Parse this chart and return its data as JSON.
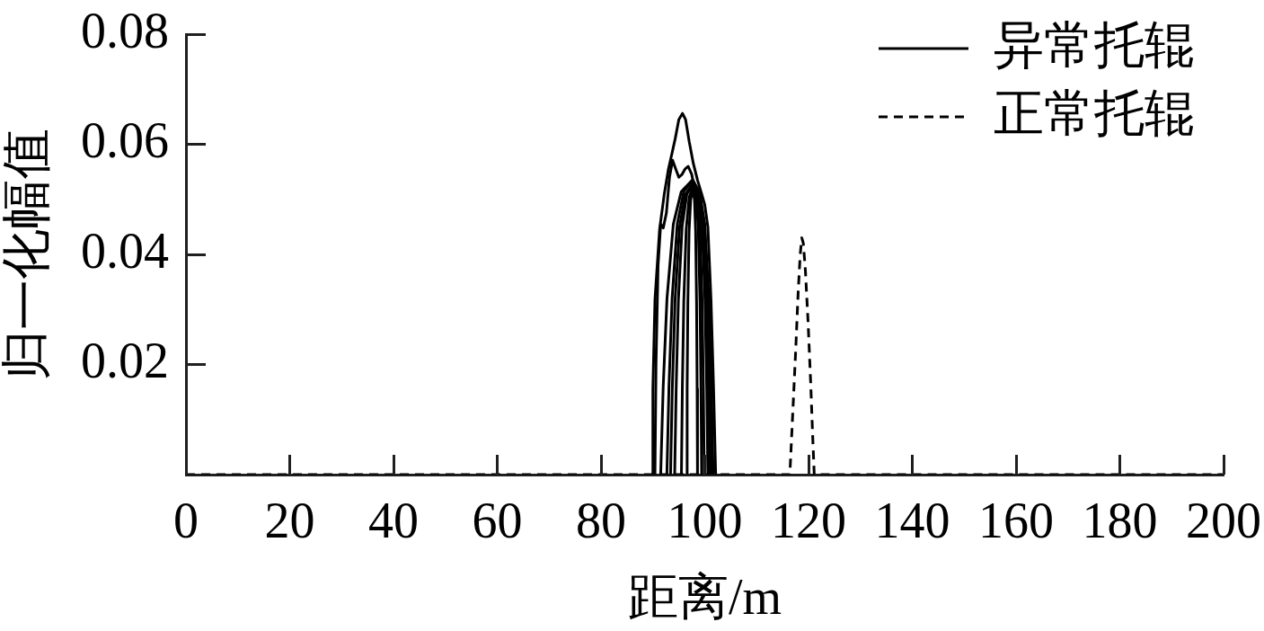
{
  "chart_data": {
    "type": "line",
    "xlabel": "距离/m",
    "ylabel": "归一化幅值",
    "xlim": [
      0,
      200
    ],
    "xticks": [
      0,
      20,
      40,
      60,
      80,
      100,
      120,
      140,
      160,
      180,
      200
    ],
    "ylim": [
      0,
      0.08
    ],
    "yticks": [
      0.02,
      0.04,
      0.06,
      0.08
    ],
    "grid": false,
    "legend": "top right",
    "marker": "none",
    "series": [
      {
        "name": "异常托辊",
        "color": "#000000",
        "line_style": "solid",
        "x": [
          89.9,
          90.0,
          90.4,
          91.3,
          92.2,
          93.0,
          93.6,
          94.3,
          95.0,
          95.7,
          96.3,
          97.0,
          97.8,
          98.6,
          99.4,
          100.0,
          100.6,
          101.2,
          101.7,
          102.1
        ],
        "values": [
          0,
          0.0155,
          0.0318,
          0.0446,
          0.051,
          0.0555,
          0.058,
          0.061,
          0.0645,
          0.0656,
          0.0645,
          0.0605,
          0.0565,
          0.0535,
          0.051,
          0.049,
          0.045,
          0.0318,
          0.0155,
          0
        ]
      },
      {
        "color": "#000000",
        "line_style": "solid",
        "x": [
          90.4,
          90.6,
          91.0,
          91.5,
          92.0,
          92.6,
          93.2,
          93.8,
          94.4,
          95.0,
          95.6,
          96.2,
          96.8,
          97.5,
          98.3,
          99.2,
          100.0,
          100.6,
          101.0,
          101.3
        ],
        "values": [
          0,
          0.02,
          0.038,
          0.0455,
          0.0448,
          0.0475,
          0.054,
          0.0571,
          0.0555,
          0.054,
          0.0545,
          0.0555,
          0.056,
          0.0545,
          0.0505,
          0.046,
          0.04,
          0.03,
          0.018,
          0
        ]
      },
      {
        "color": "#000000",
        "line_style": "solid",
        "x": [
          91.5,
          91.99,
          92.72,
          93.94,
          95.47,
          97.6,
          99.0,
          100.0,
          100.8,
          101.28,
          101.6
        ],
        "values": [
          0,
          0.016,
          0.032,
          0.0455,
          0.0514,
          0.0535,
          0.0514,
          0.0455,
          0.032,
          0.016,
          0
        ]
      },
      {
        "color": "#000000",
        "line_style": "solid",
        "x": [
          92.7,
          93.1,
          93.7,
          94.7,
          95.95,
          97.7,
          98.86,
          99.68,
          100.34,
          100.74,
          101.0
        ],
        "values": [
          0,
          0.016,
          0.032,
          0.0455,
          0.0514,
          0.0535,
          0.0514,
          0.0455,
          0.032,
          0.016,
          0
        ]
      },
      {
        "color": "#000000",
        "line_style": "solid",
        "x": [
          93.4,
          93.75,
          94.28,
          95.16,
          96.26,
          97.8,
          98.78,
          99.48,
          100.04,
          100.38,
          100.6
        ],
        "values": [
          0,
          0.0159,
          0.0318,
          0.0451,
          0.0509,
          0.053,
          0.0509,
          0.0451,
          0.0318,
          0.0159,
          0
        ]
      },
      {
        "color": "#000000",
        "line_style": "solid",
        "x": [
          94.2,
          94.49,
          94.92,
          95.64,
          96.54,
          97.8,
          98.54,
          99.06,
          99.48,
          99.73,
          99.9
        ],
        "values": [
          0,
          0.0159,
          0.0318,
          0.0451,
          0.0509,
          0.053,
          0.0509,
          0.0451,
          0.0318,
          0.0159,
          0
        ]
      },
      {
        "color": "#000000",
        "line_style": "solid",
        "x": [
          95.5,
          95.68,
          95.96,
          96.42,
          97.0,
          97.8,
          98.36,
          98.76,
          99.08,
          99.27,
          99.4
        ],
        "values": [
          0,
          0.0158,
          0.0315,
          0.0446,
          0.0504,
          0.0525,
          0.0504,
          0.0446,
          0.0315,
          0.0158,
          0
        ]
      },
      {
        "color": "#000000",
        "line_style": "solid",
        "x": [
          96.5,
          96.6,
          96.74,
          96.98,
          97.28,
          97.7,
          98.02,
          98.24,
          98.42,
          98.53,
          98.6
        ],
        "values": [
          0,
          0.0156,
          0.0312,
          0.0442,
          0.0499,
          0.052,
          0.0499,
          0.0442,
          0.0312,
          0.0156,
          0
        ]
      },
      {
        "name": "正常托辊",
        "color": "#000000",
        "line_style": "dashed",
        "x": [
          0,
          116.4,
          117.0,
          117.5,
          118.0,
          118.4,
          118.7,
          119.0,
          119.4,
          119.9,
          120.4,
          120.8,
          121.1,
          200
        ],
        "values": [
          0,
          0,
          0.012,
          0.022,
          0.033,
          0.04,
          0.043,
          0.042,
          0.037,
          0.028,
          0.017,
          0.007,
          0,
          0
        ]
      }
    ]
  }
}
